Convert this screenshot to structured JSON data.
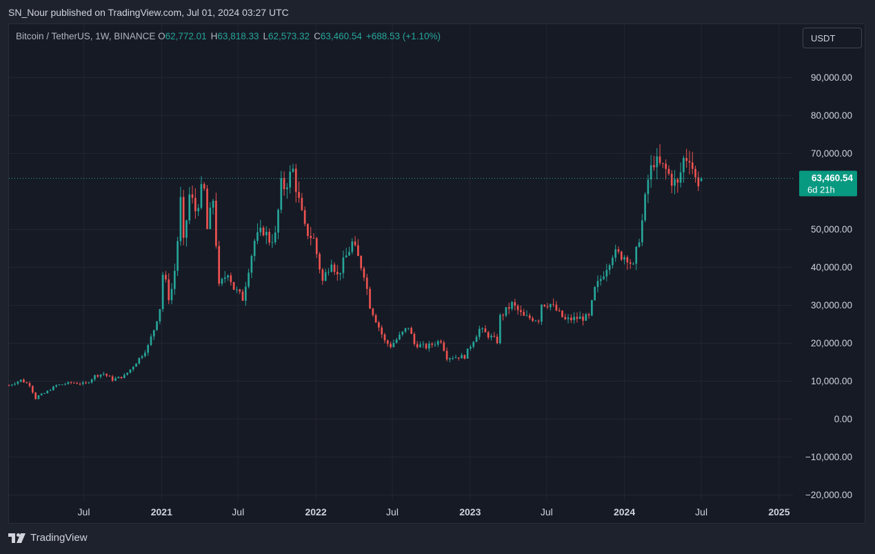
{
  "header": {
    "published": "SN_Nour published on TradingView.com, Jul 01, 2024 03:27 UTC"
  },
  "legend": {
    "symbol": "Bitcoin / TetherUS, 1W, BINANCE",
    "open_label": "O",
    "open": "62,772.01",
    "high_label": "H",
    "high": "63,818.33",
    "low_label": "L",
    "low": "62,573.32",
    "close_label": "C",
    "close": "63,460.54",
    "change": "+688.53 (+1.10%)"
  },
  "currency_button": {
    "label": "USDT"
  },
  "footer": {
    "brand": "TradingView",
    "logo_icon": "tradingview-logo-icon"
  },
  "colors": {
    "up": "#26a69a",
    "down": "#ef5350",
    "grid": "#232632",
    "axis_text": "#d1d4dc",
    "price_tag_bg": "#089981"
  },
  "chart_data": {
    "type": "candlestick",
    "interval": "1W",
    "grid": true,
    "ylim": [
      -20000,
      93000
    ],
    "y_ticks": [
      {
        "v": 90000,
        "label": "90,000.00"
      },
      {
        "v": 80000,
        "label": "80,000.00"
      },
      {
        "v": 70000,
        "label": "70,000.00"
      },
      {
        "v": 50000,
        "label": "50,000.00"
      },
      {
        "v": 40000,
        "label": "40,000.00"
      },
      {
        "v": 30000,
        "label": "30,000.00"
      },
      {
        "v": 20000,
        "label": "20,000.00"
      },
      {
        "v": 10000,
        "label": "10,000.00"
      },
      {
        "v": 0,
        "label": "0.00"
      },
      {
        "v": -10000,
        "label": "−10,000.00"
      },
      {
        "v": -20000,
        "label": "−20,000.00"
      }
    ],
    "x_ticks": [
      {
        "date": "2020-07-01",
        "label": "Jul",
        "bold": false
      },
      {
        "date": "2021-01-01",
        "label": "2021",
        "bold": true
      },
      {
        "date": "2021-07-01",
        "label": "Jul",
        "bold": false
      },
      {
        "date": "2022-01-01",
        "label": "2022",
        "bold": true
      },
      {
        "date": "2022-07-01",
        "label": "Jul",
        "bold": false
      },
      {
        "date": "2023-01-01",
        "label": "2023",
        "bold": true
      },
      {
        "date": "2023-07-01",
        "label": "Jul",
        "bold": false
      },
      {
        "date": "2024-01-01",
        "label": "2024",
        "bold": true
      },
      {
        "date": "2024-07-01",
        "label": "Jul",
        "bold": false
      },
      {
        "date": "2025-01-01",
        "label": "2025",
        "bold": true
      }
    ],
    "x_range": [
      "2020-01-06",
      "2025-01-06"
    ],
    "last_price": {
      "value": 63460.54,
      "label": "63,460.54",
      "countdown": "6d 21h"
    },
    "series": [
      {
        "date": "2020-01-06",
        "close": 8900
      },
      {
        "date": "2020-02-03",
        "close": 10300
      },
      {
        "date": "2020-02-24",
        "close": 9000
      },
      {
        "date": "2020-03-09",
        "close": 5400
      },
      {
        "date": "2020-03-16",
        "close": 6200
      },
      {
        "date": "2020-03-30",
        "close": 6800
      },
      {
        "date": "2020-04-27",
        "close": 8900
      },
      {
        "date": "2020-06-01",
        "close": 9600
      },
      {
        "date": "2020-07-06",
        "close": 9300
      },
      {
        "date": "2020-07-27",
        "close": 11400
      },
      {
        "date": "2020-08-17",
        "close": 12000
      },
      {
        "date": "2020-09-07",
        "close": 10400
      },
      {
        "date": "2020-10-05",
        "close": 11400
      },
      {
        "date": "2020-10-19",
        "close": 13100
      },
      {
        "date": "2020-11-09",
        "close": 16000
      },
      {
        "date": "2020-11-30",
        "close": 19200
      },
      {
        "date": "2020-12-14",
        "close": 23700
      },
      {
        "date": "2020-12-28",
        "close": 29400
      },
      {
        "date": "2021-01-04",
        "close": 38200
      },
      {
        "date": "2021-01-11",
        "close": 35800
      },
      {
        "date": "2021-01-18",
        "close": 32200
      },
      {
        "date": "2021-01-25",
        "close": 34300
      },
      {
        "date": "2021-02-01",
        "close": 39200
      },
      {
        "date": "2021-02-08",
        "close": 47200
      },
      {
        "date": "2021-02-15",
        "close": 57400
      },
      {
        "date": "2021-02-22",
        "close": 46200
      },
      {
        "date": "2021-03-08",
        "close": 59000
      },
      {
        "date": "2021-03-15",
        "close": 57300
      },
      {
        "date": "2021-03-22",
        "close": 55000
      },
      {
        "date": "2021-04-05",
        "close": 59900
      },
      {
        "date": "2021-04-12",
        "close": 60000
      },
      {
        "date": "2021-04-19",
        "close": 50000
      },
      {
        "date": "2021-05-03",
        "close": 58000
      },
      {
        "date": "2021-05-10",
        "close": 46500
      },
      {
        "date": "2021-05-17",
        "close": 34700
      },
      {
        "date": "2021-06-07",
        "close": 39000
      },
      {
        "date": "2021-06-21",
        "close": 34500
      },
      {
        "date": "2021-07-12",
        "close": 31800
      },
      {
        "date": "2021-07-26",
        "close": 39900
      },
      {
        "date": "2021-08-09",
        "close": 47000
      },
      {
        "date": "2021-08-30",
        "close": 49900
      },
      {
        "date": "2021-09-13",
        "close": 47300
      },
      {
        "date": "2021-09-27",
        "close": 48200
      },
      {
        "date": "2021-10-11",
        "close": 61500
      },
      {
        "date": "2021-10-18",
        "close": 61300
      },
      {
        "date": "2021-11-08",
        "close": 65500
      },
      {
        "date": "2021-11-22",
        "close": 57300
      },
      {
        "date": "2021-12-06",
        "close": 50100
      },
      {
        "date": "2021-12-27",
        "close": 47300
      },
      {
        "date": "2022-01-17",
        "close": 36300
      },
      {
        "date": "2022-02-07",
        "close": 42200
      },
      {
        "date": "2022-02-21",
        "close": 37700
      },
      {
        "date": "2022-03-28",
        "close": 46400
      },
      {
        "date": "2022-04-25",
        "close": 38500
      },
      {
        "date": "2022-05-09",
        "close": 30000
      },
      {
        "date": "2022-06-13",
        "close": 20500
      },
      {
        "date": "2022-06-27",
        "close": 19300
      },
      {
        "date": "2022-08-08",
        "close": 24400
      },
      {
        "date": "2022-08-22",
        "close": 19800
      },
      {
        "date": "2022-09-19",
        "close": 19000
      },
      {
        "date": "2022-10-24",
        "close": 20800
      },
      {
        "date": "2022-11-07",
        "close": 16300
      },
      {
        "date": "2022-12-19",
        "close": 16500
      },
      {
        "date": "2023-01-09",
        "close": 20900
      },
      {
        "date": "2023-01-23",
        "close": 23700
      },
      {
        "date": "2023-03-06",
        "close": 20500
      },
      {
        "date": "2023-03-13",
        "close": 26900
      },
      {
        "date": "2023-04-10",
        "close": 30300
      },
      {
        "date": "2023-05-08",
        "close": 26900
      },
      {
        "date": "2023-06-12",
        "close": 26300
      },
      {
        "date": "2023-06-19",
        "close": 30500
      },
      {
        "date": "2023-07-10",
        "close": 30300
      },
      {
        "date": "2023-08-14",
        "close": 26100
      },
      {
        "date": "2023-09-11",
        "close": 26600
      },
      {
        "date": "2023-10-09",
        "close": 26800
      },
      {
        "date": "2023-10-23",
        "close": 34100
      },
      {
        "date": "2023-11-06",
        "close": 37000
      },
      {
        "date": "2023-12-04",
        "close": 43700
      },
      {
        "date": "2024-01-08",
        "close": 42800
      },
      {
        "date": "2024-01-22",
        "close": 39900
      },
      {
        "date": "2024-02-12",
        "close": 52100
      },
      {
        "date": "2024-02-26",
        "close": 63100
      },
      {
        "date": "2024-03-11",
        "close": 68300
      },
      {
        "date": "2024-03-18",
        "close": 67200
      },
      {
        "date": "2024-04-08",
        "close": 65600
      },
      {
        "date": "2024-04-22",
        "close": 63100
      },
      {
        "date": "2024-05-06",
        "close": 61500
      },
      {
        "date": "2024-05-20",
        "close": 68500
      },
      {
        "date": "2024-06-03",
        "close": 69600
      },
      {
        "date": "2024-06-17",
        "close": 63200
      },
      {
        "date": "2024-06-24",
        "close": 62800
      },
      {
        "date": "2024-07-01",
        "close": 63460.54
      }
    ]
  }
}
